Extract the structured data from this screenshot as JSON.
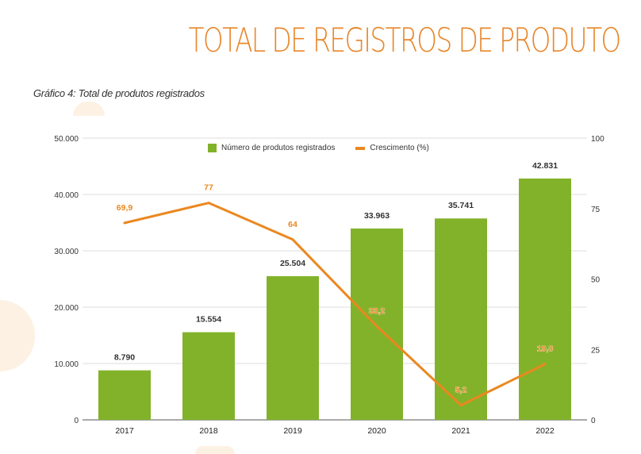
{
  "page": {
    "title": "TOTAL DE REGISTROS DE PRODUTO",
    "caption": "Gráfico 4: Total de produtos registrados"
  },
  "colors": {
    "bars": "#82b22a",
    "line": "#ea8820",
    "title": "#e8872c",
    "bar_labels": "#333333"
  },
  "chart_data": {
    "type": "bar",
    "categories": [
      "2017",
      "2018",
      "2019",
      "2020",
      "2021",
      "2022"
    ],
    "series": [
      {
        "name": "Número de produtos registrados",
        "type": "bar",
        "axis": "left",
        "values": [
          8790,
          15554,
          25504,
          33963,
          35741,
          42831
        ],
        "labels": [
          "8.790",
          "15.554",
          "25.504",
          "33.963",
          "35.741",
          "42.831"
        ]
      },
      {
        "name": "Crescimento (%)",
        "type": "line",
        "axis": "right",
        "values": [
          69.9,
          77,
          64,
          33.2,
          5.2,
          19.8
        ],
        "labels": [
          "69,9",
          "77",
          "64",
          "33,2",
          "5,2",
          "19,8"
        ]
      }
    ],
    "y_left": {
      "ylim": [
        0,
        50000
      ],
      "ticks": [
        "0",
        "10.000",
        "20.000",
        "30.000",
        "40.000",
        "50.000"
      ]
    },
    "y_right": {
      "ylim": [
        0,
        100
      ],
      "ticks": [
        "0",
        "25",
        "50",
        "75",
        "100"
      ]
    },
    "grid": true,
    "legend_position": "top"
  }
}
